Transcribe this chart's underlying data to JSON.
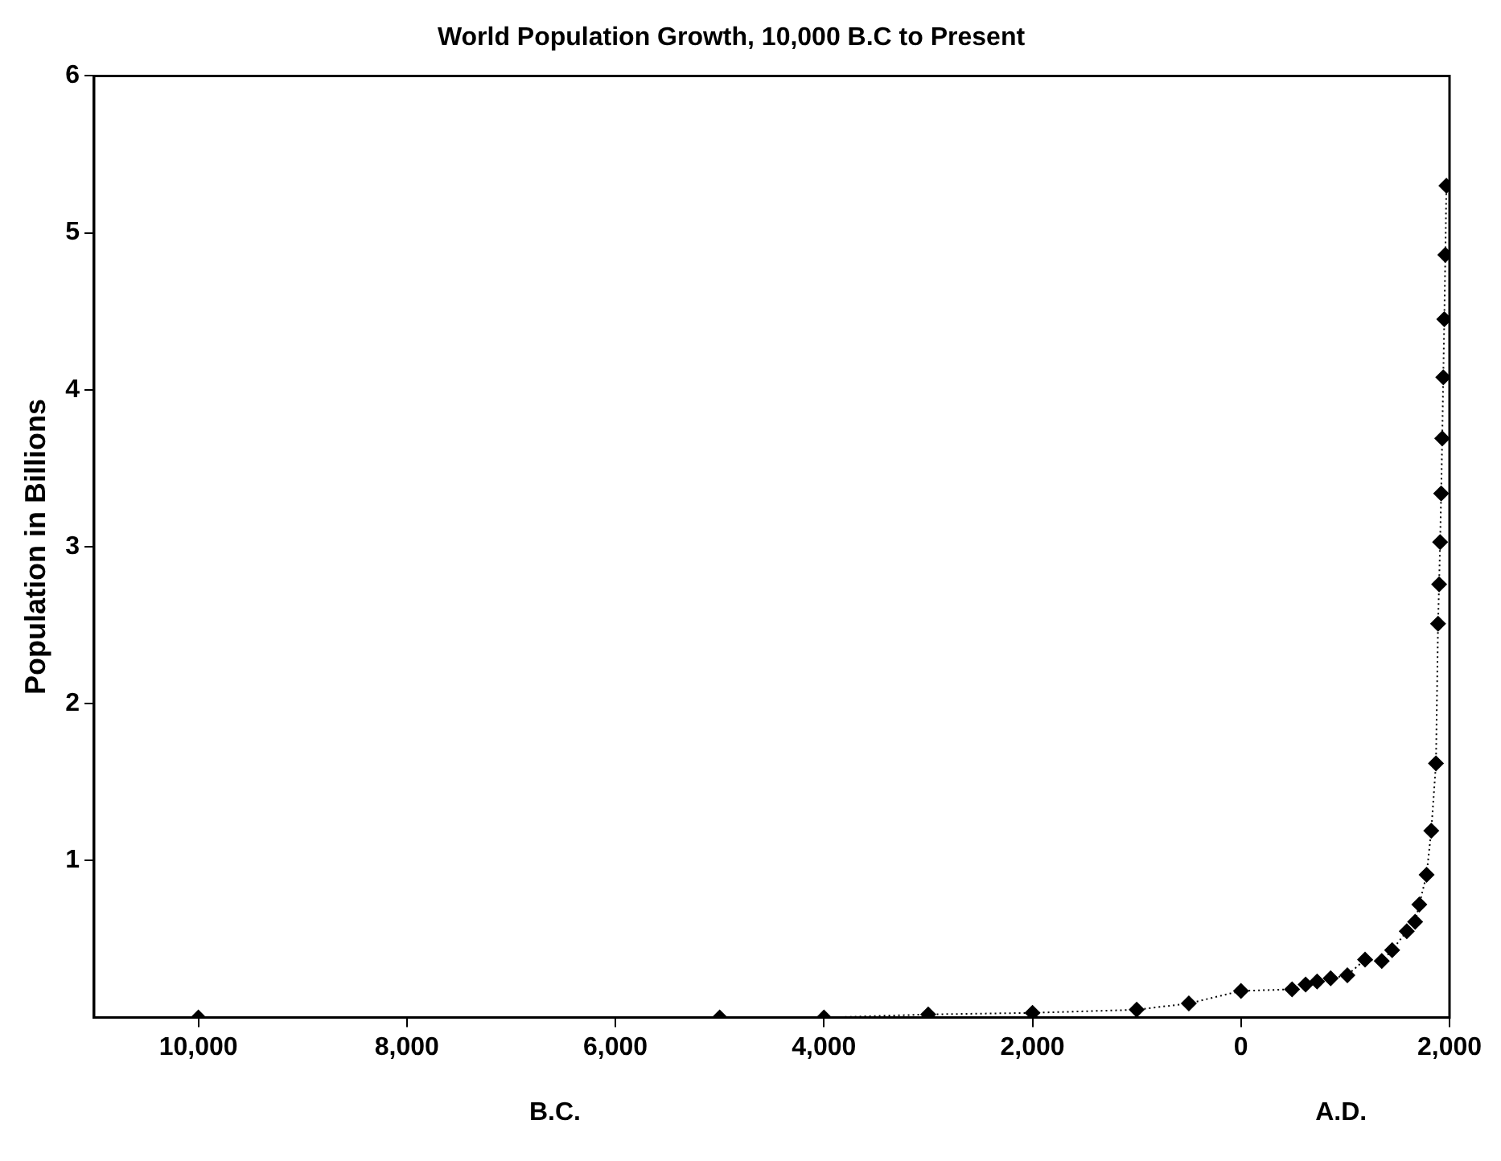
{
  "chart_data": {
    "type": "line",
    "title": "World Population Growth, 10,000 B.C to Present",
    "ylabel": "Population in Billions",
    "annotations": [
      "B.C.",
      "A.D."
    ],
    "xlim": [
      -11000,
      2000
    ],
    "xticks": [
      {
        "value": -10000,
        "label": "10,000"
      },
      {
        "value": -8000,
        "label": "8,000"
      },
      {
        "value": -6000,
        "label": "6,000"
      },
      {
        "value": -4000,
        "label": "4,000"
      },
      {
        "value": -2000,
        "label": "2,000"
      },
      {
        "value": 0,
        "label": "0"
      },
      {
        "value": 2000,
        "label": "2,000"
      }
    ],
    "ylim": [
      0,
      6
    ],
    "yticks": [
      1,
      2,
      3,
      4,
      5,
      6
    ],
    "grid": false,
    "legend": false,
    "marker": "diamond",
    "line_style": "dotted",
    "series": [
      {
        "color": "#000000",
        "x": [
          -10000,
          -5000,
          -4000,
          -3000,
          -2000,
          -1000,
          -500,
          0,
          490,
          620,
          730,
          860,
          1020,
          1190,
          1350,
          1450,
          1590,
          1670,
          1710,
          1780,
          1825,
          1870,
          1890,
          1900,
          1910,
          1920,
          1930,
          1940,
          1950,
          1960,
          1970
        ],
        "values": [
          0,
          0,
          0,
          0.02,
          0.03,
          0.05,
          0.09,
          0.17,
          0.18,
          0.21,
          0.23,
          0.25,
          0.27,
          0.37,
          0.36,
          0.43,
          0.55,
          0.61,
          0.72,
          0.91,
          1.19,
          1.62,
          2.51,
          2.76,
          3.03,
          3.34,
          3.69,
          4.08,
          4.45,
          4.86,
          5.3
        ]
      }
    ]
  }
}
